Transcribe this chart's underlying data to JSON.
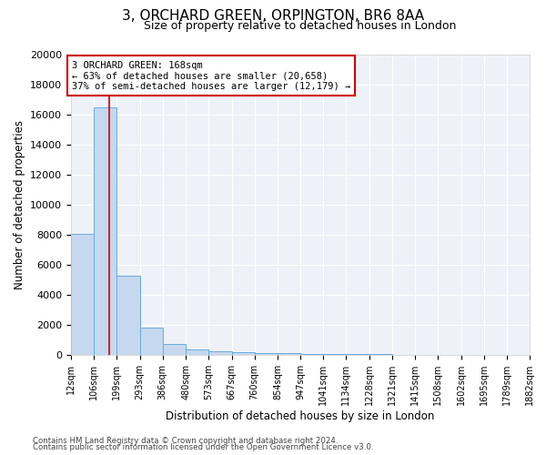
{
  "title": "3, ORCHARD GREEN, ORPINGTON, BR6 8AA",
  "subtitle": "Size of property relative to detached houses in London",
  "xlabel": "Distribution of detached houses by size in London",
  "ylabel": "Number of detached properties",
  "footer1": "Contains HM Land Registry data © Crown copyright and database right 2024.",
  "footer2": "Contains public sector information licensed under the Open Government Licence v3.0.",
  "annotation_line1": "3 ORCHARD GREEN: 168sqm",
  "annotation_line2": "← 63% of detached houses are smaller (20,658)",
  "annotation_line3": "37% of semi-detached houses are larger (12,179) →",
  "property_size": 168,
  "bar_color": "#c5d8f0",
  "bar_edge_color": "#6aabda",
  "vline_color": "#cc0000",
  "annotation_box_color": "#cc0000",
  "bin_edges": [
    12,
    106,
    199,
    293,
    386,
    480,
    573,
    667,
    760,
    854,
    947,
    1041,
    1134,
    1228,
    1321,
    1415,
    1508,
    1602,
    1695,
    1789,
    1882
  ],
  "bin_counts": [
    8050,
    16500,
    5300,
    1800,
    700,
    350,
    250,
    200,
    150,
    100,
    80,
    60,
    50,
    40,
    30,
    20,
    15,
    12,
    10,
    8
  ],
  "ylim": [
    0,
    20000
  ],
  "yticks": [
    0,
    2000,
    4000,
    6000,
    8000,
    10000,
    12000,
    14000,
    16000,
    18000,
    20000
  ],
  "ytick_labels": [
    "0",
    "2000",
    "4000",
    "6000",
    "8000",
    "10000",
    "12000",
    "14000",
    "16000",
    "18000",
    "20000"
  ],
  "tick_labels": [
    "12sqm",
    "106sqm",
    "199sqm",
    "293sqm",
    "386sqm",
    "480sqm",
    "573sqm",
    "667sqm",
    "760sqm",
    "854sqm",
    "947sqm",
    "1041sqm",
    "1134sqm",
    "1228sqm",
    "1321sqm",
    "1415sqm",
    "1508sqm",
    "1602sqm",
    "1695sqm",
    "1789sqm",
    "1882sqm"
  ],
  "background_color": "#eef2f8",
  "grid_color": "#ffffff",
  "title_fontsize": 11,
  "subtitle_fontsize": 9
}
